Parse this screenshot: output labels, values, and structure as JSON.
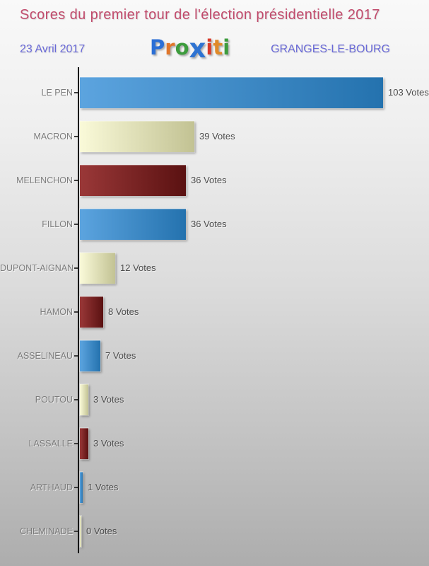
{
  "header": {
    "title": "Scores du premier tour de l'élection présidentielle 2017",
    "date": "23 Avril 2017",
    "commune": "GRANGES-LE-BOURG",
    "logo": {
      "text": "Proxiti",
      "letters": [
        {
          "ch": "P",
          "color": "#2b6fd6",
          "big": false
        },
        {
          "ch": "r",
          "color": "#e0762a",
          "big": false
        },
        {
          "ch": "o",
          "color": "#3d9c3d",
          "big": false
        },
        {
          "ch": "x",
          "color": "#2e73d2",
          "big": true
        },
        {
          "ch": "i",
          "color": "#d93b2b",
          "big": false
        },
        {
          "ch": "t",
          "color": "#e08a28",
          "big": false
        },
        {
          "ch": "i",
          "color": "#3d9c3d",
          "big": false
        }
      ]
    }
  },
  "colors": {
    "title": "#c14b6c",
    "accent_blue_violet": "#6a6ad8",
    "axis": "#161616",
    "category_label": "#7c7c7c",
    "value_label": "#4c4c4c"
  },
  "chart_data": {
    "type": "bar",
    "orientation": "horizontal",
    "title": "Scores du premier tour de l'élection présidentielle 2017",
    "xlabel": "",
    "ylabel": "",
    "xlim": [
      0,
      103
    ],
    "grid": false,
    "legend": false,
    "unit": "Votes",
    "categories": [
      "LE PEN",
      "MACRON",
      "MELENCHON",
      "FILLON",
      "DUPONT-AIGNAN",
      "HAMON",
      "ASSELINEAU",
      "POUTOU",
      "LASSALLE",
      "ARTHAUD",
      "CHEMINADE"
    ],
    "values": [
      103,
      39,
      36,
      36,
      12,
      8,
      7,
      3,
      3,
      1,
      0
    ],
    "value_labels": [
      "103 Votes",
      "39 Votes",
      "36 Votes",
      "36 Votes",
      "12 Votes",
      "8 Votes",
      "7 Votes",
      "3 Votes",
      "3 Votes",
      "1 Votes",
      "0 Votes"
    ],
    "palette": [
      {
        "name": "blue",
        "start": "#5ca4df",
        "end": "#2472ae"
      },
      {
        "name": "cream",
        "start": "#fafad9",
        "end": "#c2c293"
      },
      {
        "name": "dark-red",
        "start": "#9a3838",
        "end": "#5a1111"
      }
    ]
  }
}
